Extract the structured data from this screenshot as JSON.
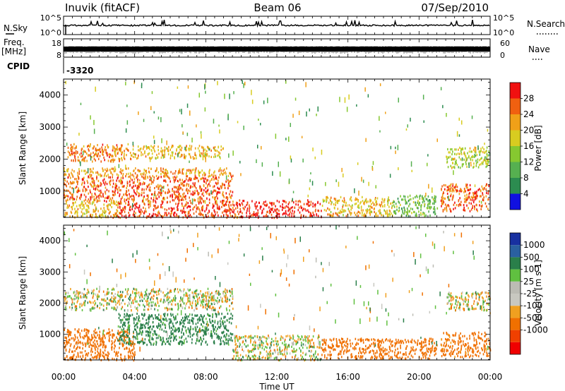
{
  "header": {
    "station": "Inuvik (fitACF)",
    "beam": "Beam 06",
    "date": "07/Sep/2010"
  },
  "strips": {
    "nsky_label": "N.Sky",
    "nsky_ticks": [
      "10^5",
      "10^0"
    ],
    "nsearch_label": "N.Search",
    "nsearch_ticks": [
      "10^5",
      "10^0"
    ],
    "freq_label": "Freq.",
    "freq_unit": "[MHz]",
    "freq_ticks": [
      "18",
      "8"
    ],
    "nave_label": "Nave",
    "nave_ticks": [
      "60",
      "0"
    ],
    "cpid_label": "CPID",
    "cpid_value": "-3320"
  },
  "x_ticks": [
    "00:00",
    "04:00",
    "08:00",
    "12:00",
    "16:00",
    "20:00",
    "00:00"
  ],
  "x_label": "Time UT",
  "colors": {
    "power_scale": [
      "#1010e0",
      "#2c8c50",
      "#56b050",
      "#86c830",
      "#d8cc20",
      "#f0a018",
      "#f06010",
      "#f01010"
    ],
    "velocity_scale": [
      "#f00000",
      "#f04000",
      "#f07000",
      "#f0a020",
      "#c8c8c0",
      "#bcbcb4",
      "#60c040",
      "#2a7f4a",
      "#2a60a0",
      "#1830a0"
    ]
  },
  "chart_data": [
    {
      "type": "heatmap",
      "title": "Power",
      "ylabel": "Slant Range [km]",
      "xlim": [
        "00:00",
        "24:00"
      ],
      "ylim": [
        180,
        4500
      ],
      "y_ticks": [
        1000,
        2000,
        3000,
        4000
      ],
      "colorbar": {
        "label": "Power [dB]",
        "ticks": [
          4,
          8,
          12,
          16,
          20,
          24,
          28
        ],
        "range": [
          0,
          32
        ]
      },
      "regions": [
        {
          "t0": 0.0,
          "t1": 3.2,
          "r0": 200,
          "r1": 700,
          "value": 20
        },
        {
          "t0": 0.0,
          "t1": 9.5,
          "r0": 700,
          "r1": 1500,
          "value": 26
        },
        {
          "t0": 0.0,
          "t1": 9.5,
          "r0": 1500,
          "r1": 1750,
          "value": 22
        },
        {
          "t0": 0.2,
          "t1": 3.8,
          "r0": 1950,
          "r1": 2500,
          "value": 24
        },
        {
          "t0": 3.8,
          "t1": 9.0,
          "r0": 2050,
          "r1": 2450,
          "value": 20
        },
        {
          "t0": 3.0,
          "t1": 9.8,
          "r0": 200,
          "r1": 700,
          "value": 28
        },
        {
          "t0": 9.8,
          "t1": 14.5,
          "r0": 200,
          "r1": 750,
          "value": 30
        },
        {
          "t0": 14.5,
          "t1": 18.5,
          "r0": 250,
          "r1": 850,
          "value": 20
        },
        {
          "t0": 18.5,
          "t1": 21.0,
          "r0": 250,
          "r1": 900,
          "value": 12
        },
        {
          "t0": 21.2,
          "t1": 23.9,
          "r0": 400,
          "r1": 1250,
          "value": 26
        },
        {
          "t0": 21.5,
          "t1": 23.9,
          "r0": 1750,
          "r1": 2400,
          "value": 16
        }
      ]
    },
    {
      "type": "heatmap",
      "title": "Velocity",
      "ylabel": "Slant Range [km]",
      "xlim": [
        "00:00",
        "24:00"
      ],
      "ylim": [
        180,
        4500
      ],
      "y_ticks": [
        1000,
        2000,
        3000,
        4000
      ],
      "colorbar": {
        "label": "Velocity [m s-1]",
        "ticks": [
          1000,
          500,
          100,
          25,
          -25,
          -100,
          -500,
          -1000
        ]
      },
      "regions": [
        {
          "t0": 0.0,
          "t1": 4.0,
          "r0": 200,
          "r1": 1200,
          "value": -300
        },
        {
          "t0": 0.0,
          "t1": 9.5,
          "r0": 1800,
          "r1": 2500,
          "value": 0
        },
        {
          "t0": 3.0,
          "t1": 9.5,
          "r0": 700,
          "r1": 1700,
          "value": 200
        },
        {
          "t0": 9.5,
          "t1": 14.5,
          "r0": 200,
          "r1": 1000,
          "value": 0
        },
        {
          "t0": 14.5,
          "t1": 21.0,
          "r0": 250,
          "r1": 900,
          "value": -300
        },
        {
          "t0": 21.2,
          "t1": 24.0,
          "r0": 300,
          "r1": 1100,
          "value": -200
        },
        {
          "t0": 21.5,
          "t1": 24.0,
          "r0": 1800,
          "r1": 2400,
          "value": 0
        }
      ]
    }
  ]
}
